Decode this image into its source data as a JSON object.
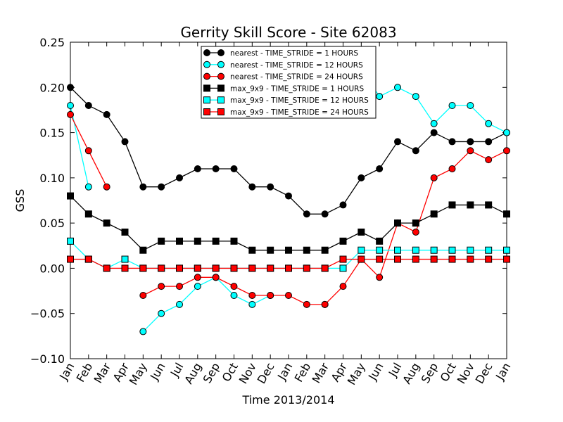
{
  "chart_data": {
    "type": "line",
    "title": "Gerrity Skill Score - Site 62083",
    "xlabel": "Time 2013/2014",
    "ylabel": "GSS",
    "ylim": [
      -0.1,
      0.25
    ],
    "yticks": [
      -0.1,
      -0.05,
      0.0,
      0.05,
      0.1,
      0.15,
      0.2,
      0.25
    ],
    "ytick_labels": [
      "−0.10",
      "−0.05",
      "0.00",
      "0.05",
      "0.10",
      "0.15",
      "0.20",
      "0.25"
    ],
    "categories": [
      "Jan",
      "Feb",
      "Mar",
      "Apr",
      "May",
      "Jun",
      "Jul",
      "Aug",
      "Sep",
      "Oct",
      "Nov",
      "Dec",
      "Jan",
      "Feb",
      "Mar",
      "Apr",
      "May",
      "Jun",
      "Jul",
      "Aug",
      "Sep",
      "Oct",
      "Nov",
      "Dec",
      "Jan"
    ],
    "grid": false,
    "legend_position": "top-center",
    "series": [
      {
        "name": "nearest - TIME_STRIDE = 1 HOURS",
        "color": "#000000",
        "marker": "circle",
        "values": [
          0.2,
          0.18,
          0.17,
          0.14,
          0.09,
          0.09,
          0.1,
          0.11,
          0.11,
          0.11,
          0.09,
          0.09,
          0.08,
          0.06,
          0.06,
          0.07,
          0.1,
          0.11,
          0.14,
          0.13,
          0.15,
          0.14,
          0.14,
          0.14,
          0.15
        ]
      },
      {
        "name": "nearest - TIME_STRIDE = 12 HOURS",
        "color": "#00ffff",
        "marker": "circle",
        "values": [
          0.18,
          0.09,
          null,
          null,
          -0.07,
          -0.05,
          -0.04,
          -0.02,
          -0.01,
          -0.03,
          -0.04,
          -0.03,
          null,
          null,
          -0.04,
          null,
          0.22,
          0.19,
          0.2,
          0.19,
          0.16,
          0.18,
          0.18,
          0.16,
          0.15
        ]
      },
      {
        "name": "nearest - TIME_STRIDE = 24 HOURS",
        "color": "#ff0000",
        "marker": "circle",
        "values": [
          0.17,
          0.13,
          0.09,
          null,
          -0.03,
          -0.02,
          -0.02,
          -0.01,
          -0.01,
          -0.02,
          -0.03,
          -0.03,
          -0.03,
          -0.04,
          -0.04,
          -0.02,
          0.01,
          -0.01,
          0.05,
          0.04,
          0.1,
          0.11,
          0.13,
          0.12,
          0.13
        ]
      },
      {
        "name": "max_9x9 - TIME_STRIDE = 1 HOURS",
        "color": "#000000",
        "marker": "square",
        "values": [
          0.08,
          0.06,
          0.05,
          0.04,
          0.02,
          0.03,
          0.03,
          0.03,
          0.03,
          0.03,
          0.02,
          0.02,
          0.02,
          0.02,
          0.02,
          0.03,
          0.04,
          0.03,
          0.05,
          0.05,
          0.06,
          0.07,
          0.07,
          0.07,
          0.06
        ]
      },
      {
        "name": "max_9x9 - TIME_STRIDE = 12 HOURS",
        "color": "#00ffff",
        "marker": "square",
        "values": [
          0.03,
          0.01,
          0.0,
          0.01,
          0.0,
          0.0,
          0.0,
          0.0,
          0.0,
          0.0,
          0.0,
          0.0,
          0.0,
          0.0,
          0.0,
          0.0,
          0.02,
          0.02,
          0.02,
          0.02,
          0.02,
          0.02,
          0.02,
          0.02,
          0.02
        ]
      },
      {
        "name": "max_9x9 - TIME_STRIDE = 24 HOURS",
        "color": "#ff0000",
        "marker": "square",
        "values": [
          0.01,
          0.01,
          0.0,
          0.0,
          0.0,
          0.0,
          0.0,
          0.0,
          0.0,
          0.0,
          0.0,
          0.0,
          0.0,
          0.0,
          0.0,
          0.01,
          0.01,
          0.01,
          0.01,
          0.01,
          0.01,
          0.01,
          0.01,
          0.01,
          0.01
        ]
      }
    ]
  }
}
